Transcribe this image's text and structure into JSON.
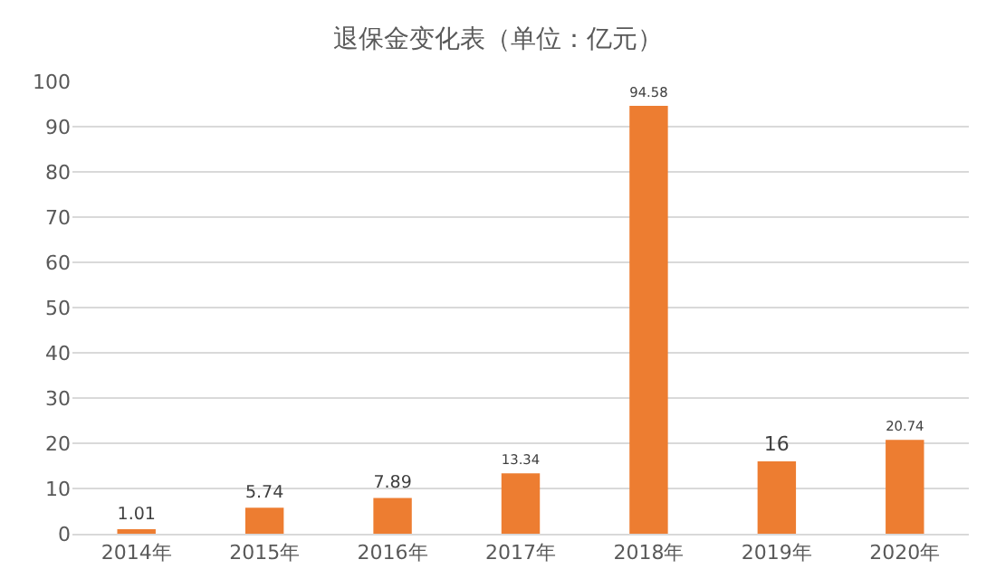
{
  "chart_data": {
    "type": "bar",
    "title": "退保金变化表（单位：亿元）",
    "categories": [
      "2014年",
      "2015年",
      "2016年",
      "2017年",
      "2018年",
      "2019年",
      "2020年"
    ],
    "values": [
      1.01,
      5.74,
      7.89,
      13.34,
      94.58,
      16,
      20.74
    ],
    "color": "#ed7d31",
    "ylim": [
      0,
      100
    ],
    "yticks": [
      0,
      10,
      20,
      30,
      40,
      50,
      60,
      70,
      80,
      90,
      100
    ],
    "grid": "y",
    "data_labels": true,
    "legend": false
  }
}
